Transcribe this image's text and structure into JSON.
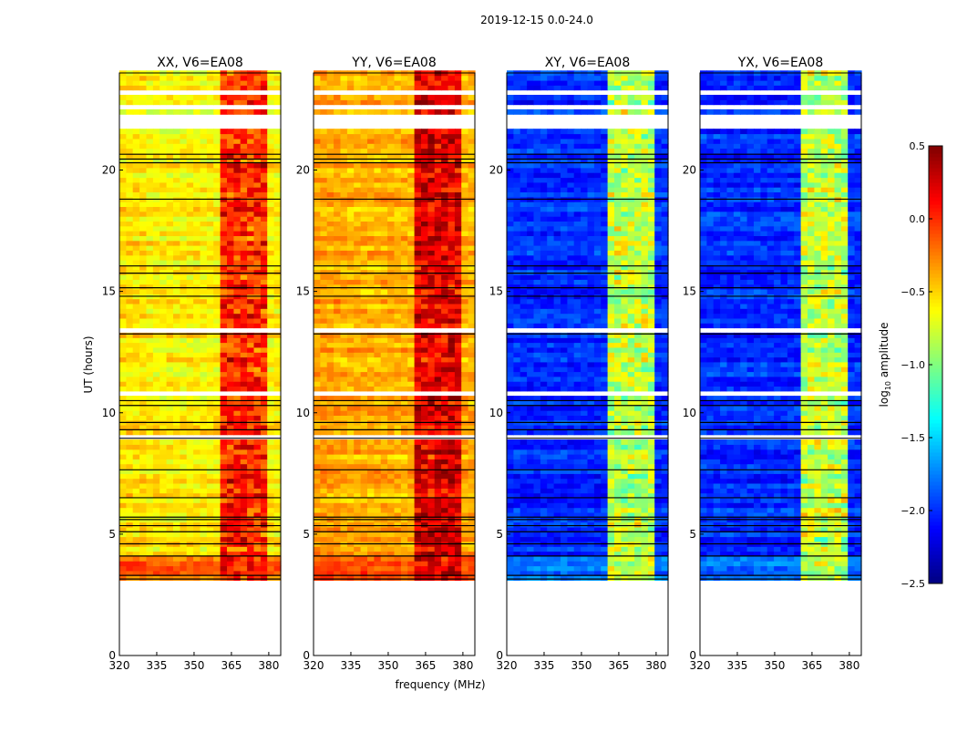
{
  "chart_data": {
    "type": "heatmap",
    "title": "2019-12-15 0.0-24.0",
    "xlabel": "frequency (MHz)",
    "ylabel": "UT (hours)",
    "xlim": [
      320,
      384.8
    ],
    "ylim": [
      0,
      24
    ],
    "xticks": [
      "320",
      "335",
      "350",
      "365",
      "380"
    ],
    "yticks": [
      "0",
      "5",
      "10",
      "15",
      "20"
    ],
    "colorbar": {
      "label": "log10 amplitude",
      "label_base": "log",
      "label_sub": "10",
      "label_rest": " amplitude",
      "range": [
        -2.5,
        0.5
      ],
      "ticks": [
        "0.5",
        "0.0",
        "−0.5",
        "−1.0",
        "−1.5",
        "−2.0",
        "−2.5"
      ],
      "colormap": "jet"
    },
    "data_start_hour": 3.1,
    "flagged_hours": [
      [
        23.1,
        23.3
      ],
      [
        22.4,
        22.75
      ],
      [
        21.65,
        22.25
      ],
      [
        13.3,
        13.5
      ],
      [
        10.7,
        10.9
      ],
      [
        8.85,
        9.05
      ],
      [
        14.2,
        14.3
      ],
      [
        5.45,
        5.5
      ]
    ],
    "black_line_hours": [
      20.65,
      20.45,
      20.3,
      18.8,
      16.05,
      15.75,
      15.15,
      14.8,
      13.25,
      10.5,
      10.3,
      9.6,
      9.3,
      8.95,
      7.65,
      6.5,
      5.7,
      5.6,
      5.35,
      5.1,
      4.6,
      4.1,
      3.3,
      3.15
    ],
    "panels": [
      {
        "title": "XX, V6=EA08",
        "base_level": -0.6,
        "rfi_level": -0.1,
        "early_level": -0.2
      },
      {
        "title": "YY, V6=EA08",
        "base_level": -0.4,
        "rfi_level": 0.1,
        "early_level": -0.1
      },
      {
        "title": "XY, V6=EA08",
        "base_level": -2.0,
        "rfi_level": -0.9,
        "early_level": -1.8
      },
      {
        "title": "YX, V6=EA08",
        "base_level": -2.0,
        "rfi_level": -0.9,
        "early_level": -1.8
      }
    ],
    "rfi_channels_mhz": [
      [
        361,
        365
      ],
      [
        366,
        370
      ],
      [
        371,
        374
      ],
      [
        375,
        379
      ]
    ]
  }
}
